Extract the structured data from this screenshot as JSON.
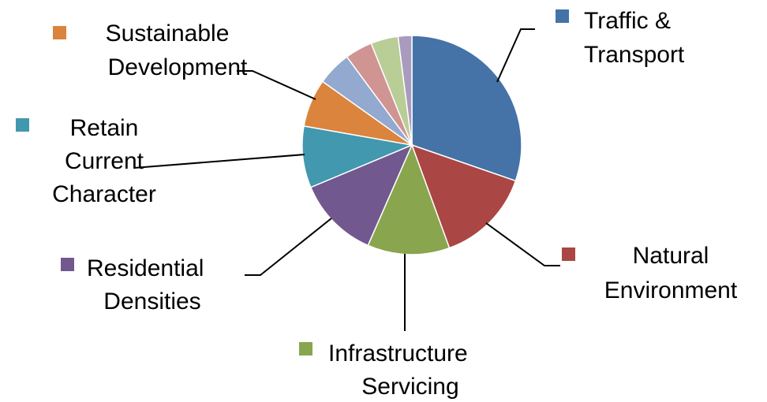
{
  "chart_data": {
    "type": "pie",
    "title": "",
    "legend": "none",
    "slices": [
      {
        "label_lines": [
          "Traffic &",
          "Transport"
        ],
        "value": 30,
        "color": "#4572A7"
      },
      {
        "label_lines": [
          "Natural",
          "Environment"
        ],
        "value": 14,
        "color": "#AA4643"
      },
      {
        "label_lines": [
          "Infrastructure",
          "Servicing"
        ],
        "value": 12,
        "color": "#89A54E"
      },
      {
        "label_lines": [
          "Residential",
          "Densities"
        ],
        "value": 12,
        "color": "#71588F"
      },
      {
        "label_lines": [
          "Retain",
          "Current",
          "Character"
        ],
        "value": 9,
        "color": "#4198AF"
      },
      {
        "label_lines": [
          "Sustainable",
          "Development"
        ],
        "value": 7,
        "color": "#DB843D"
      },
      {
        "label_lines": [],
        "value": 5,
        "color": "#93A9CF"
      },
      {
        "label_lines": [],
        "value": 4,
        "color": "#D09493"
      },
      {
        "label_lines": [],
        "value": 4,
        "color": "#B9CD96"
      },
      {
        "label_lines": [],
        "value": 2,
        "color": "#A99BBD"
      }
    ]
  }
}
